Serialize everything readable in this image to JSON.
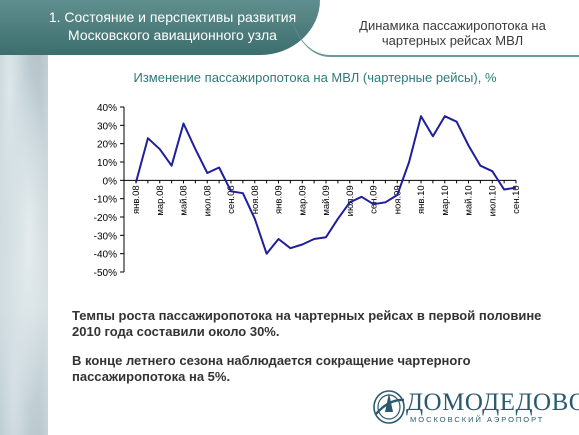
{
  "header": {
    "section": "1. Состояние и перспективы развития\nМосковского авиационного узла",
    "title": "Динамика пассажиропотока на\nчартерных рейсах МВЛ"
  },
  "text": {
    "paragraph1": "Темпы роста пассажиропотока на чартерных рейсах в первой половине 2010 года составили около 30%.",
    "paragraph2": "В конце летнего сезона наблюдается сокращение чартерного пассажиропотока на 5%."
  },
  "logo": {
    "name": "ДОМОДЕДОВО",
    "subtitle": "МОСКОВСКИЙ АЭРОПОРТ"
  },
  "chart_data": {
    "type": "line",
    "title": "Изменение пассажиропотока на МВЛ (чартерные рейсы), %",
    "x": [
      "янв.08",
      "фев.08",
      "мар.08",
      "апр.08",
      "май.08",
      "июн.08",
      "июл.08",
      "авг.08",
      "сен.08",
      "окт.08",
      "ноя.08",
      "дек.08",
      "янв.09",
      "фев.09",
      "мар.09",
      "апр.09",
      "май.09",
      "июн.09",
      "июл.09",
      "авг.09",
      "сен.09",
      "окт.09",
      "ноя.09",
      "дек.09",
      "янв.10",
      "фев.10",
      "мар.10",
      "апр.10",
      "май.10",
      "июн.10",
      "июл.10",
      "авг.10",
      "сен.10"
    ],
    "tick_labels": [
      "янв.08",
      "мар.08",
      "май.08",
      "июл.08",
      "сен.08",
      "ноя.08",
      "янв.09",
      "мар.09",
      "май.09",
      "июл.09",
      "сен.09",
      "ноя.09",
      "янв.10",
      "мар.10",
      "май.10",
      "июл.10",
      "сен.10"
    ],
    "series": [
      {
        "values": [
          -1,
          23,
          17,
          8,
          31,
          17,
          4,
          7,
          -6,
          -7,
          -21,
          -40,
          -32,
          -37,
          -35,
          -32,
          -31,
          -21,
          -12,
          -9,
          -13,
          -12,
          -8,
          10,
          35,
          24,
          35,
          32,
          19,
          8,
          5,
          -5,
          -4
        ],
        "color": "#1f1f9e"
      }
    ],
    "y_ticks": [
      "40%",
      "30%",
      "20%",
      "10%",
      "0%",
      "-10%",
      "-20%",
      "-30%",
      "-40%",
      "-50%"
    ],
    "ylim": [
      -50,
      40
    ],
    "grid": false,
    "legend": "none"
  }
}
